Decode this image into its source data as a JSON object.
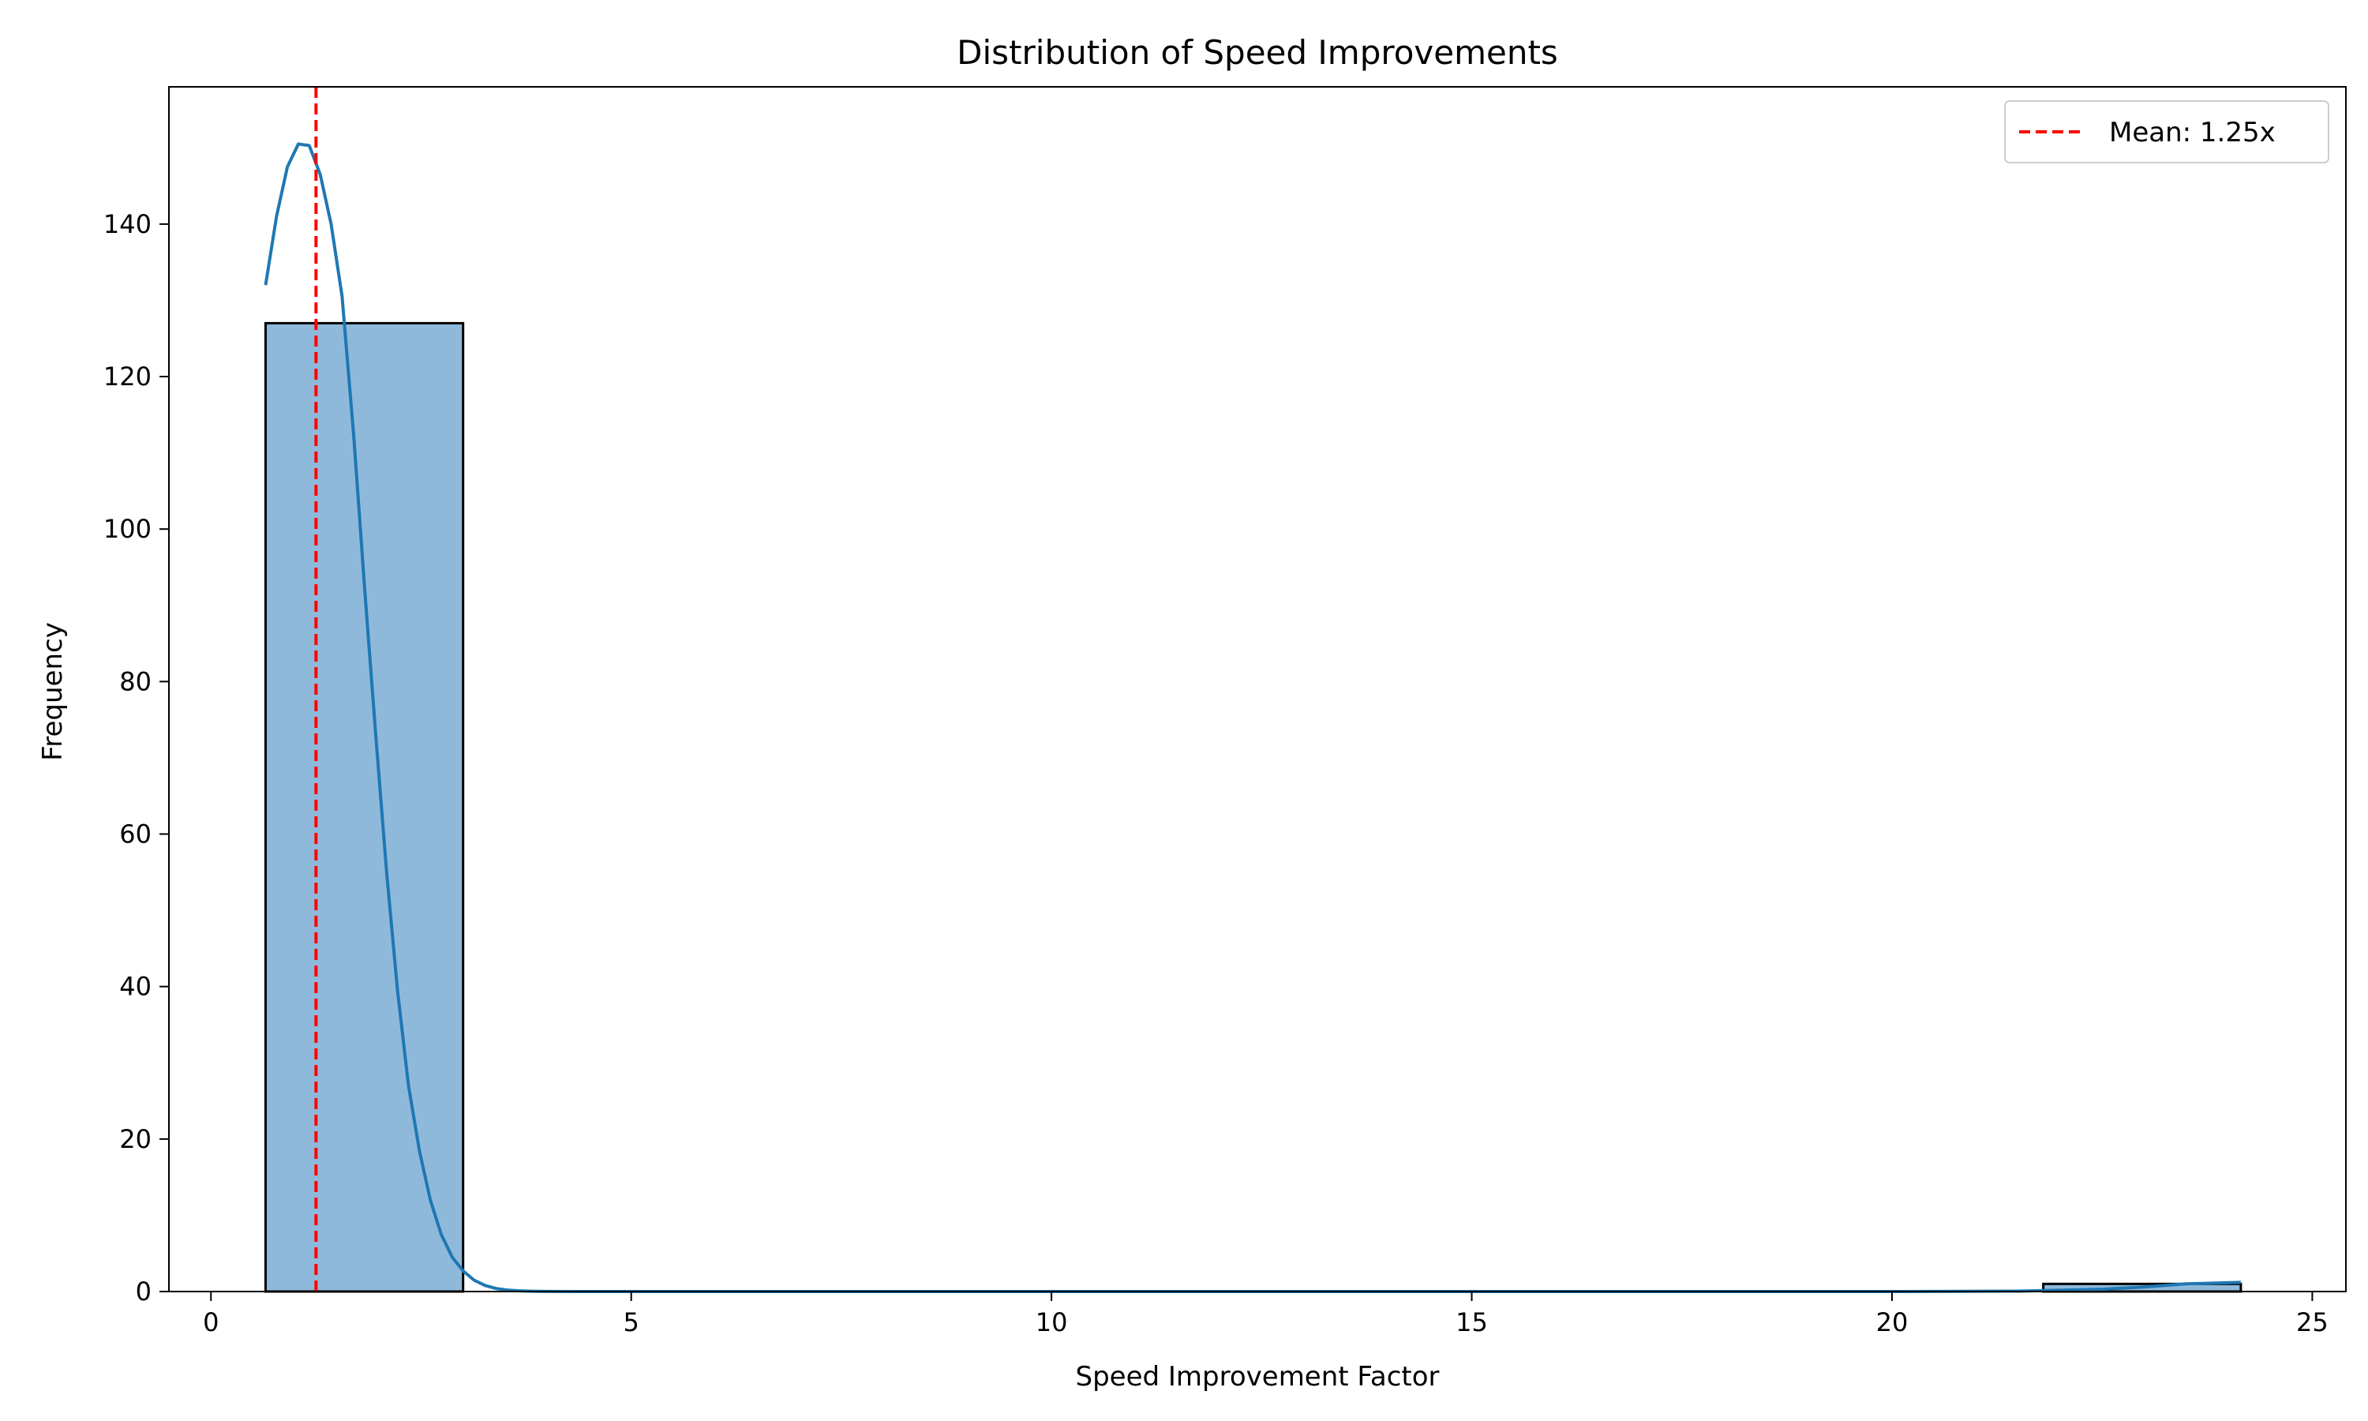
{
  "chart_data": {
    "type": "bar",
    "title": "Distribution of Speed Improvements",
    "xlabel": "Speed Improvement Factor",
    "ylabel": "Frequency",
    "xlim": [
      -0.5,
      25.4
    ],
    "ylim": [
      0,
      158
    ],
    "xticks": [
      0,
      5,
      10,
      15,
      20,
      25
    ],
    "yticks": [
      0,
      20,
      40,
      60,
      80,
      100,
      120,
      140
    ],
    "bins": [
      {
        "start": 0.65,
        "end": 3.0,
        "count": 127
      },
      {
        "start": 3.0,
        "end": 5.35,
        "count": 0
      },
      {
        "start": 5.35,
        "end": 7.7,
        "count": 0
      },
      {
        "start": 7.7,
        "end": 10.05,
        "count": 0
      },
      {
        "start": 10.05,
        "end": 12.4,
        "count": 0
      },
      {
        "start": 12.4,
        "end": 14.75,
        "count": 0
      },
      {
        "start": 14.75,
        "end": 17.1,
        "count": 0
      },
      {
        "start": 17.1,
        "end": 19.45,
        "count": 0
      },
      {
        "start": 19.45,
        "end": 21.8,
        "count": 0
      },
      {
        "start": 21.8,
        "end": 24.15,
        "count": 1
      }
    ],
    "kde": {
      "x": [
        0.65,
        0.78,
        0.91,
        1.04,
        1.17,
        1.3,
        1.43,
        1.56,
        1.7,
        1.83,
        1.96,
        2.09,
        2.22,
        2.35,
        2.48,
        2.61,
        2.74,
        2.87,
        3.0,
        3.13,
        3.26,
        3.39,
        3.52,
        3.65,
        3.78,
        3.91,
        4.05,
        4.3,
        5.0,
        10.0,
        15.0,
        20.0,
        21.5,
        22.5,
        23.0,
        23.5,
        24.15
      ],
      "y": [
        132,
        141,
        147.5,
        150.5,
        150.3,
        146.5,
        140,
        130.5,
        112,
        92,
        73,
        55,
        39.5,
        27,
        18.5,
        12,
        7.5,
        4.5,
        2.7,
        1.5,
        0.8,
        0.4,
        0.2,
        0.1,
        0.05,
        0.02,
        0.01,
        0,
        0,
        0,
        0,
        0,
        0.05,
        0.3,
        0.6,
        1.0,
        1.2
      ]
    },
    "mean_line": {
      "x": 1.25,
      "label": "Mean: 1.25x",
      "color": "#ff0000"
    },
    "colors": {
      "bar_fill": "#8fb9da",
      "bar_edge": "#000000",
      "kde": "#1f77b4"
    },
    "legend": {
      "position": "top-right",
      "entries": [
        "Mean: 1.25x"
      ]
    },
    "grid": false
  }
}
